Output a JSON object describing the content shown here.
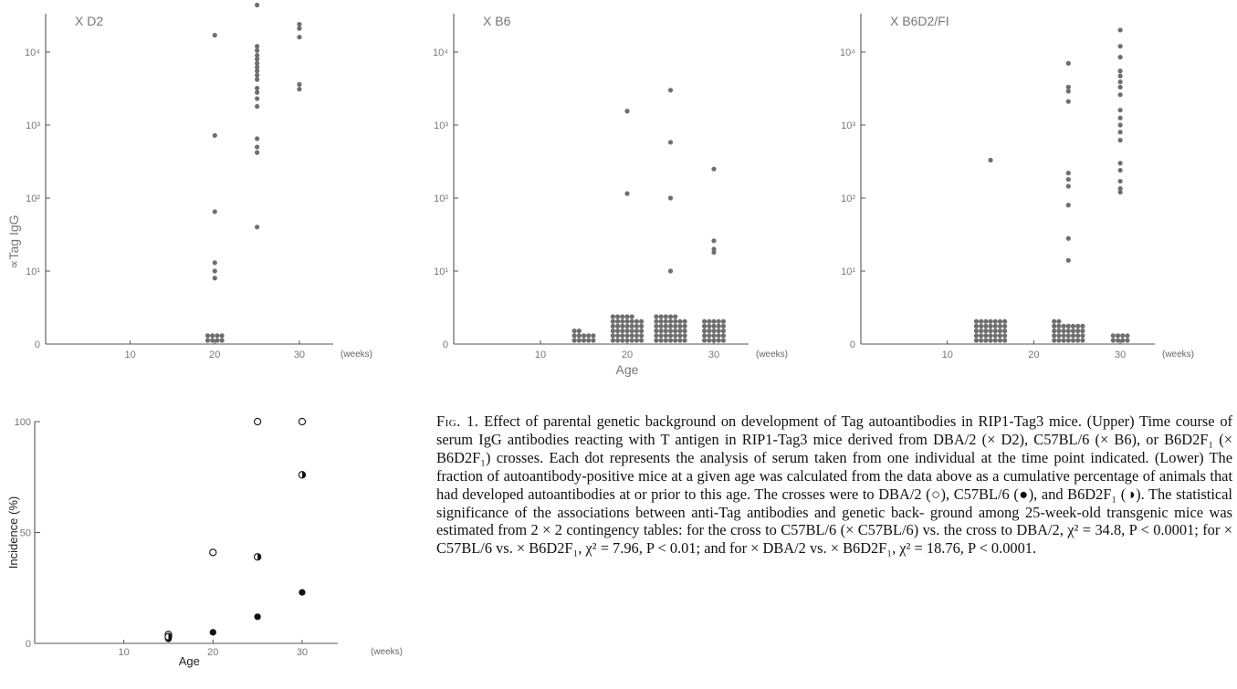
{
  "chart_data": [
    {
      "type": "scatter",
      "title": "X D2",
      "ylabel": "∝Tag IgG",
      "xlabel": "",
      "x_units": "(weeks)",
      "x_ticks": [
        10,
        20,
        30
      ],
      "y_scale": "log",
      "y_ticks": [
        "0",
        "10¹",
        "10²",
        "10³",
        "10⁴"
      ],
      "xlim": [
        0,
        34
      ],
      "points": [
        {
          "x": 20,
          "y": 17000
        },
        {
          "x": 20,
          "y": 720
        },
        {
          "x": 20,
          "y": 65
        },
        {
          "x": 20,
          "y": 13
        },
        {
          "x": 20,
          "y": 10
        },
        {
          "x": 20,
          "y": 8
        },
        {
          "x": 25,
          "y": 44000
        },
        {
          "x": 25,
          "y": 12000
        },
        {
          "x": 25,
          "y": 10500
        },
        {
          "x": 25,
          "y": 9000
        },
        {
          "x": 25,
          "y": 8000
        },
        {
          "x": 25,
          "y": 7000
        },
        {
          "x": 25,
          "y": 6200
        },
        {
          "x": 25,
          "y": 5500
        },
        {
          "x": 25,
          "y": 4800
        },
        {
          "x": 25,
          "y": 4200
        },
        {
          "x": 25,
          "y": 3200
        },
        {
          "x": 25,
          "y": 2800
        },
        {
          "x": 25,
          "y": 2300
        },
        {
          "x": 25,
          "y": 1800
        },
        {
          "x": 25,
          "y": 650
        },
        {
          "x": 25,
          "y": 500
        },
        {
          "x": 25,
          "y": 420
        },
        {
          "x": 25,
          "y": 40
        },
        {
          "x": 30,
          "y": 24000
        },
        {
          "x": 30,
          "y": 21000
        },
        {
          "x": 30,
          "y": 16000
        },
        {
          "x": 30,
          "y": 3600
        },
        {
          "x": 30,
          "y": 3100
        }
      ],
      "zero_counts": [
        {
          "x": 20,
          "n": 8
        }
      ]
    },
    {
      "type": "scatter",
      "title": "X B6",
      "ylabel": "",
      "xlabel": "Age",
      "x_units": "(weeks)",
      "x_ticks": [
        10,
        20,
        30
      ],
      "y_scale": "log",
      "y_ticks": [
        "0",
        "10¹",
        "10²",
        "10³",
        "10⁴"
      ],
      "xlim": [
        0,
        34
      ],
      "points": [
        {
          "x": 20,
          "y": 1550
        },
        {
          "x": 20,
          "y": 115
        },
        {
          "x": 25,
          "y": 3000
        },
        {
          "x": 25,
          "y": 580
        },
        {
          "x": 25,
          "y": 100
        },
        {
          "x": 25,
          "y": 10
        },
        {
          "x": 30,
          "y": 250
        },
        {
          "x": 30,
          "y": 26
        },
        {
          "x": 30,
          "y": 20
        },
        {
          "x": 30,
          "y": 18
        }
      ],
      "zero_counts": [
        {
          "x": 15,
          "n": 12
        },
        {
          "x": 20,
          "n": 40
        },
        {
          "x": 25,
          "n": 40
        },
        {
          "x": 30,
          "n": 25
        }
      ]
    },
    {
      "type": "scatter",
      "title": "X B6D2/FI",
      "ylabel": "",
      "xlabel": "",
      "x_units": "(weeks)",
      "x_ticks": [
        10,
        20,
        30
      ],
      "y_scale": "log",
      "y_ticks": [
        "0",
        "10¹",
        "10²",
        "10³",
        "10⁴"
      ],
      "xlim": [
        0,
        34
      ],
      "points": [
        {
          "x": 15,
          "y": 330
        },
        {
          "x": 24,
          "y": 7000
        },
        {
          "x": 24,
          "y": 3300
        },
        {
          "x": 24,
          "y": 2900
        },
        {
          "x": 24,
          "y": 2100
        },
        {
          "x": 24,
          "y": 220
        },
        {
          "x": 24,
          "y": 180
        },
        {
          "x": 24,
          "y": 145
        },
        {
          "x": 24,
          "y": 80
        },
        {
          "x": 24,
          "y": 28
        },
        {
          "x": 24,
          "y": 14
        },
        {
          "x": 30,
          "y": 20000
        },
        {
          "x": 30,
          "y": 12000
        },
        {
          "x": 30,
          "y": 8500
        },
        {
          "x": 30,
          "y": 5500
        },
        {
          "x": 30,
          "y": 4700
        },
        {
          "x": 30,
          "y": 3900
        },
        {
          "x": 30,
          "y": 3300
        },
        {
          "x": 30,
          "y": 2600
        },
        {
          "x": 30,
          "y": 1600
        },
        {
          "x": 30,
          "y": 1250
        },
        {
          "x": 30,
          "y": 1000
        },
        {
          "x": 30,
          "y": 800
        },
        {
          "x": 30,
          "y": 620
        },
        {
          "x": 30,
          "y": 300
        },
        {
          "x": 30,
          "y": 240
        },
        {
          "x": 30,
          "y": 170
        },
        {
          "x": 30,
          "y": 135
        },
        {
          "x": 30,
          "y": 120
        }
      ],
      "zero_counts": [
        {
          "x": 15,
          "n": 35
        },
        {
          "x": 24,
          "n": 30
        },
        {
          "x": 30,
          "n": 8
        }
      ]
    },
    {
      "type": "scatter",
      "title": "",
      "ylabel": "Incidence (%)",
      "xlabel": "Age",
      "x_units": "(weeks)",
      "x_ticks": [
        10,
        20,
        30
      ],
      "y_ticks": [
        0,
        50,
        100
      ],
      "xlim": [
        0,
        34
      ],
      "ylim": [
        0,
        100
      ],
      "series": [
        {
          "marker": "open",
          "points": [
            {
              "x": 15,
              "y": 4
            },
            {
              "x": 20,
              "y": 41
            },
            {
              "x": 25,
              "y": 100
            },
            {
              "x": 30,
              "y": 100
            }
          ]
        },
        {
          "marker": "filled",
          "points": [
            {
              "x": 15,
              "y": 2
            },
            {
              "x": 20,
              "y": 5
            },
            {
              "x": 25,
              "y": 12
            },
            {
              "x": 30,
              "y": 23
            }
          ]
        },
        {
          "marker": "half",
          "points": [
            {
              "x": 15,
              "y": 3
            },
            {
              "x": 25,
              "y": 39
            },
            {
              "x": 30,
              "y": 76
            }
          ]
        }
      ]
    }
  ],
  "caption": {
    "figure_label": "Fig. 1.",
    "lines": [
      "Effect of parental genetic background on development of Tag autoantibodies in",
      "RIP1-Tag3 mice. (Upper) Time course of serum IgG antibodies reacting with T antigen in",
      "RIP1-Tag3 mice derived from DBA/2 (× D2), C57BL/6 (× B6), or B6D2F₁ (× B6D2F₁)",
      "crosses. Each dot represents the analysis of serum taken from one individual at the time point",
      "indicated. (Lower) The fraction of autoantibody-positive mice at a given age was calculated",
      "from the data above as a cumulative percentage of animals that had developed autoantibodies",
      "at or prior to this age. The crosses were to DBA/2 (○), C57BL/6 (●), and B6D2F₁ (◑). The",
      "statistical significance of the associations between anti-Tag antibodies and genetic back-",
      "ground among 25-week-old transgenic mice was estimated from 2 × 2 contingency tables: for",
      "the cross to C57BL/6 (× C57BL/6) vs. the cross to DBA/2, χ² = 34.8, P < 0.0001; for ×",
      "C57BL/6 vs. × B6D2F₁, χ² = 7.96, P < 0.01; and for × DBA/2 vs. × B6D2F₁, χ² = 18.76,",
      "P < 0.0001."
    ]
  }
}
